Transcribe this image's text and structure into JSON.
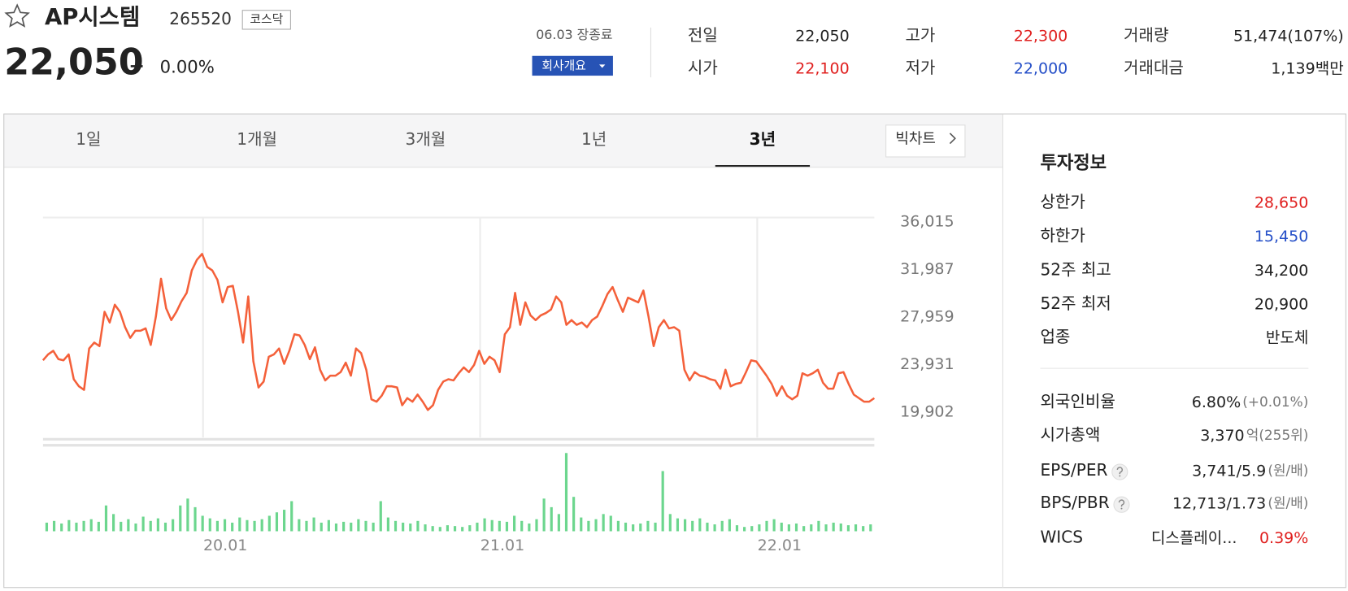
{
  "header": {
    "name": "AP시스템",
    "code": "265520",
    "market": "코스닥",
    "price": "22,050",
    "change_rate": "0.00%",
    "date": "06.03 장종료",
    "button": "회사개요",
    "stats": [
      {
        "label": "전일",
        "value": "22,050"
      },
      {
        "label": "고가",
        "value": "22,300",
        "color": "#e0201f"
      },
      {
        "label": "거래량",
        "value": "51,474(107%)"
      },
      {
        "label": "시가",
        "value": "22,100",
        "color": "#e0201f"
      },
      {
        "label": "저가",
        "value": "22,000",
        "color": "#2650c8"
      },
      {
        "label": "거래대금",
        "value": "1,139",
        "suffix": "백만"
      }
    ]
  },
  "chart_panel": {
    "tabs": [
      "1일",
      "1개월",
      "3개월",
      "1년",
      "3년"
    ],
    "active_tab": 4,
    "big_chart": "빅차트"
  },
  "chart_data": [
    {
      "type": "line",
      "color": "#f4603a",
      "xlim": [
        -6.93,
        29.07
      ],
      "xticks": [
        {
          "value": 0,
          "label": "20.01"
        },
        {
          "value": 12,
          "label": "21.01"
        },
        {
          "value": 24,
          "label": "22.01"
        }
      ],
      "xgrid": true,
      "ylim": [
        17620,
        36380
      ],
      "yticks": [
        {
          "value": 36015,
          "label": "36,015"
        },
        {
          "value": 31987,
          "label": "31,987"
        },
        {
          "value": 27959,
          "label": "27,959"
        },
        {
          "value": 23931,
          "label": "23,931"
        },
        {
          "value": 19902,
          "label": "19,902"
        }
      ],
      "values": [
        24300,
        24800,
        25100,
        24400,
        24300,
        24800,
        22700,
        22100,
        21800,
        25300,
        25800,
        25500,
        28400,
        27500,
        29000,
        28400,
        27100,
        26200,
        26800,
        26800,
        27000,
        25600,
        28000,
        31200,
        28700,
        27700,
        28400,
        29300,
        30000,
        31900,
        32800,
        33300,
        32200,
        31900,
        31100,
        29200,
        30500,
        30600,
        28400,
        25800,
        29700,
        24200,
        22000,
        22500,
        24600,
        24800,
        25300,
        24000,
        25100,
        26500,
        26400,
        25600,
        24400,
        25400,
        23500,
        22600,
        23000,
        23000,
        23300,
        24100,
        23000,
        25300,
        24900,
        23500,
        21000,
        20800,
        21300,
        22100,
        22100,
        22000,
        20500,
        21100,
        20800,
        21400,
        20800,
        20100,
        20500,
        21800,
        22500,
        22700,
        22600,
        23200,
        23700,
        23300,
        23900,
        25100,
        24000,
        24600,
        24300,
        23300,
        26500,
        27100,
        30000,
        27300,
        29200,
        28100,
        27700,
        28100,
        28300,
        28600,
        29700,
        29200,
        27300,
        27700,
        27300,
        27500,
        27100,
        27700,
        28000,
        28900,
        29900,
        30500,
        29400,
        28400,
        29600,
        29400,
        29200,
        30200,
        28000,
        25500,
        27100,
        27700,
        27000,
        27100,
        26800,
        23500,
        22600,
        23300,
        23000,
        22900,
        22700,
        22600,
        21900,
        23500,
        22100,
        22300,
        22400,
        23300,
        24300,
        24200,
        23600,
        23000,
        22300,
        21300,
        22100,
        21300,
        21000,
        21300,
        23200,
        23000,
        23200,
        23500,
        22400,
        21900,
        21900,
        23200,
        23300,
        22300,
        21400,
        21100,
        20800,
        20800,
        21100
      ]
    },
    {
      "type": "bar",
      "color": "#6cd68e",
      "ylim": [
        0,
        100
      ],
      "values": [
        10,
        12,
        9,
        13,
        10,
        12,
        14,
        11,
        30,
        20,
        11,
        14,
        9,
        17,
        12,
        15,
        10,
        14,
        30,
        38,
        28,
        18,
        15,
        12,
        14,
        10,
        16,
        13,
        12,
        14,
        18,
        22,
        25,
        35,
        14,
        12,
        16,
        10,
        13,
        9,
        11,
        10,
        14,
        12,
        10,
        35,
        16,
        12,
        10,
        9,
        12,
        8,
        6,
        5,
        7,
        6,
        5,
        7,
        10,
        15,
        13,
        12,
        11,
        18,
        12,
        9,
        14,
        38,
        28,
        20,
        91,
        40,
        16,
        12,
        14,
        20,
        18,
        12,
        10,
        8,
        9,
        12,
        10,
        70,
        20,
        15,
        14,
        12,
        15,
        10,
        8,
        12,
        14,
        7,
        5,
        6,
        8,
        12,
        14,
        10,
        8,
        9,
        6,
        8,
        12,
        8,
        10,
        9,
        7,
        8,
        6,
        8
      ]
    }
  ],
  "invest_info": {
    "title": "투자정보",
    "groups": [
      [
        {
          "label": "상한가",
          "value": "28,650",
          "color": "#e0201f"
        },
        {
          "label": "하한가",
          "value": "15,450",
          "color": "#2650c8"
        },
        {
          "label": "52주 최고",
          "value": "34,200"
        },
        {
          "label": "52주 최저",
          "value": "20,900"
        },
        {
          "label": "업종",
          "value": "반도체"
        }
      ],
      [
        {
          "label": "외국인비율",
          "value": "6.80%",
          "suffix": "(+0.01%)"
        },
        {
          "label": "시가총액",
          "value": "3,370",
          "suffix": "억(255위)"
        },
        {
          "label": "EPS/PER",
          "help": true,
          "value": "3,741/5.9",
          "suffix": "(원/배)"
        },
        {
          "label": "BPS/PBR",
          "help": true,
          "value": "12,713/1.73",
          "suffix": "(원/배)"
        },
        {
          "label": "WICS",
          "value": "디스플레이...",
          "suffix": "0.39%",
          "suffix_color": "#e0201f"
        }
      ]
    ]
  }
}
